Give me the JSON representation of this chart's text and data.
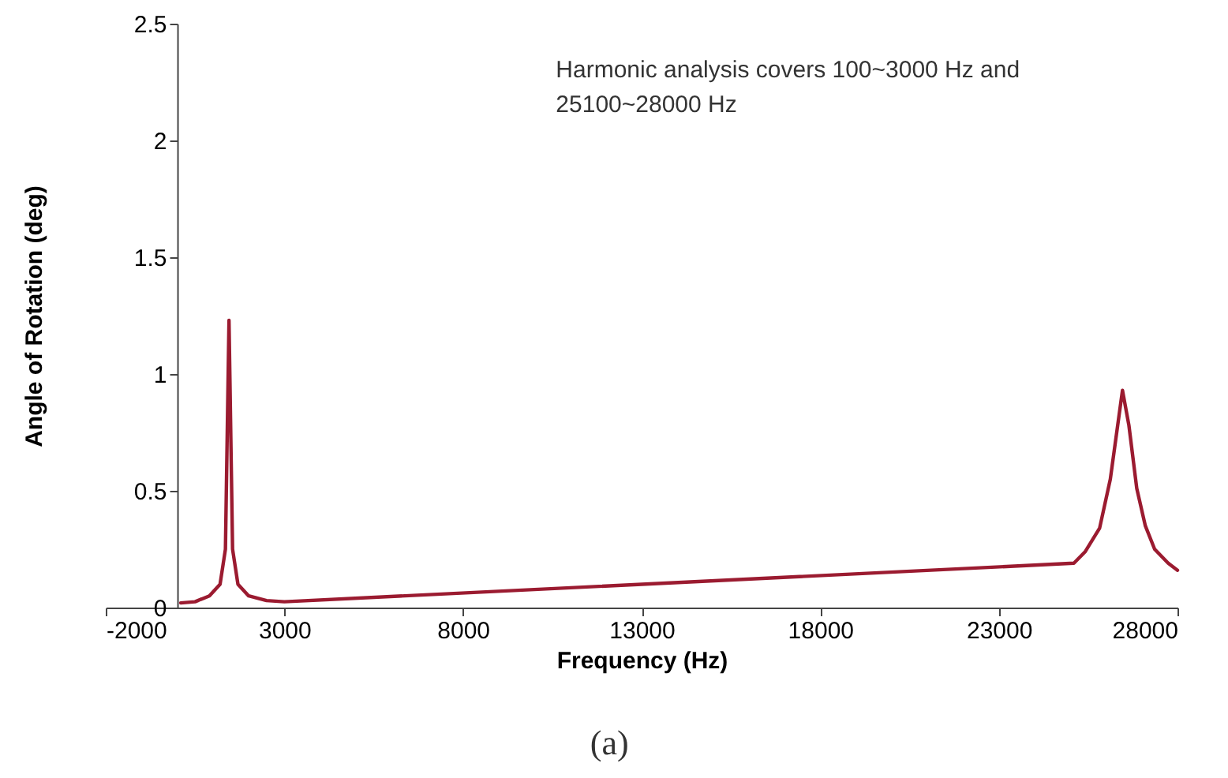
{
  "chart_data": {
    "type": "line",
    "xlabel": "Frequency (Hz)",
    "ylabel": "Angle of Rotation (deg)",
    "annotations": [
      "Harmonic analysis covers 100~3000 Hz and\n25100~28000 Hz",
      "(a)"
    ],
    "x": [
      100,
      500,
      900,
      1200,
      1350,
      1450,
      1550,
      1700,
      2000,
      2500,
      3000,
      25100,
      25420,
      25820,
      26120,
      26460,
      26640,
      26860,
      27100,
      27360,
      27740,
      28000
    ],
    "series": [
      {
        "color": "#9b1b30",
        "values": [
          0.02,
          0.025,
          0.05,
          0.1,
          0.25,
          1.23,
          0.25,
          0.1,
          0.05,
          0.03,
          0.025,
          0.19,
          0.24,
          0.34,
          0.55,
          0.93,
          0.78,
          0.51,
          0.35,
          0.25,
          0.19,
          0.16
        ]
      }
    ],
    "xlim": [
      -2000,
      28000
    ],
    "xticks": [
      -2000,
      3000,
      8000,
      13000,
      18000,
      23000,
      28000
    ],
    "ylim": [
      0,
      2.5
    ],
    "yticks": [
      0,
      0.5,
      1,
      1.5,
      2,
      2.5
    ],
    "grid": false,
    "marker": "none",
    "line_style": "solid"
  }
}
